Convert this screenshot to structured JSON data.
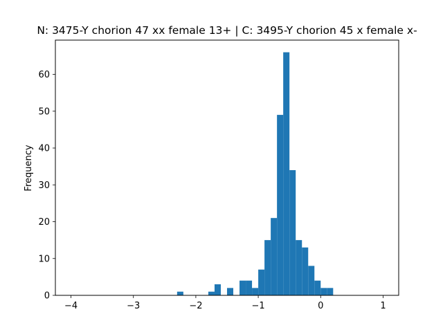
{
  "chart_data": {
    "type": "bar",
    "title": "N: 3475-Y chorion 47 xx female 13+ | C: 3495-Y chorion 45 x female x-",
    "xlabel": "",
    "ylabel": "Frequency",
    "xlim": [
      -4.25,
      1.25
    ],
    "ylim": [
      0,
      69.3
    ],
    "xticks": [
      -4,
      -3,
      -2,
      -1,
      0,
      1
    ],
    "xtick_labels": [
      "−4",
      "−3",
      "−2",
      "−1",
      "0",
      "1"
    ],
    "yticks": [
      0,
      10,
      20,
      30,
      40,
      50,
      60
    ],
    "ytick_labels": [
      "0",
      "10",
      "20",
      "30",
      "40",
      "50",
      "60"
    ],
    "bar_color": "#1f77b4",
    "bin_edges": [
      -4.0,
      -3.9,
      -3.8,
      -3.7,
      -3.6,
      -3.5,
      -3.4,
      -3.3,
      -3.2,
      -3.1,
      -3.0,
      -2.9,
      -2.8,
      -2.7,
      -2.6,
      -2.5,
      -2.4,
      -2.3,
      -2.2,
      -2.1,
      -2.0,
      -1.9,
      -1.8,
      -1.7,
      -1.6,
      -1.5,
      -1.4,
      -1.3,
      -1.2,
      -1.1,
      -1.0,
      -0.9,
      -0.8,
      -0.7,
      -0.6,
      -0.5,
      -0.4,
      -0.3,
      -0.2,
      -0.1,
      0.0,
      0.1,
      0.2,
      0.3,
      0.4,
      0.5,
      0.6,
      0.7,
      0.8,
      0.9,
      1.0
    ],
    "counts": [
      0,
      0,
      0,
      0,
      0,
      0,
      0,
      0,
      0,
      0,
      0,
      0,
      0,
      0,
      0,
      0,
      0,
      1,
      0,
      0,
      0,
      0,
      1,
      3,
      0,
      2,
      0,
      4,
      4,
      2,
      7,
      15,
      21,
      49,
      66,
      34,
      15,
      13,
      8,
      4,
      2,
      2,
      0,
      0,
      0,
      0,
      0,
      0,
      0,
      0
    ]
  }
}
